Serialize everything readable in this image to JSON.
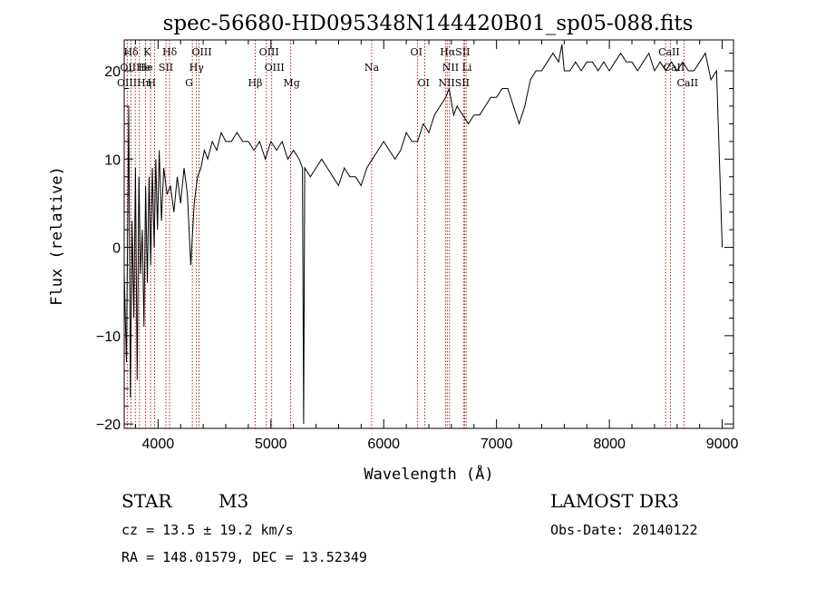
{
  "chart_data": {
    "type": "line",
    "title": "spec-56680-HD095348N144420B01_sp05-088.fits",
    "xlabel": "Wavelength (Å)",
    "ylabel": "Flux (relative)",
    "xlim": [
      3700,
      9100
    ],
    "ylim": [
      -20.5,
      23.5
    ],
    "xticks": [
      4000,
      5000,
      6000,
      7000,
      8000,
      9000
    ],
    "xtick_labels": [
      "4000",
      "5000",
      "6000",
      "7000",
      "8000",
      "9000"
    ],
    "yticks": [
      -20,
      -10,
      0,
      10,
      20
    ],
    "ytick_labels": [
      "−20",
      "−10",
      "0",
      "10",
      "20"
    ],
    "series": [
      {
        "name": "flux",
        "color": "#000000",
        "x": [
          3700,
          3720,
          3740,
          3755,
          3770,
          3785,
          3800,
          3815,
          3830,
          3845,
          3860,
          3875,
          3890,
          3905,
          3920,
          3935,
          3950,
          3965,
          3980,
          3995,
          4010,
          4030,
          4050,
          4080,
          4110,
          4140,
          4170,
          4200,
          4230,
          4260,
          4290,
          4320,
          4350,
          4380,
          4410,
          4440,
          4480,
          4520,
          4560,
          4600,
          4650,
          4700,
          4750,
          4800,
          4850,
          4900,
          4950,
          5000,
          5050,
          5100,
          5150,
          5200,
          5250,
          5280,
          5290,
          5300,
          5350,
          5400,
          5450,
          5500,
          5550,
          5600,
          5650,
          5700,
          5750,
          5800,
          5850,
          5900,
          5950,
          6000,
          6050,
          6100,
          6150,
          6200,
          6250,
          6300,
          6350,
          6400,
          6450,
          6500,
          6550,
          6580,
          6620,
          6650,
          6700,
          6750,
          6800,
          6850,
          6900,
          6950,
          7000,
          7050,
          7100,
          7150,
          7200,
          7250,
          7300,
          7350,
          7400,
          7450,
          7500,
          7550,
          7580,
          7600,
          7650,
          7700,
          7750,
          7800,
          7850,
          7900,
          7950,
          8000,
          8050,
          8100,
          8150,
          8200,
          8250,
          8300,
          8350,
          8400,
          8450,
          8500,
          8550,
          8600,
          8650,
          8700,
          8750,
          8800,
          8850,
          8900,
          8950,
          9000
        ],
        "y": [
          -3,
          -13,
          16,
          -17,
          3,
          -8,
          9,
          -15,
          8,
          -3,
          2,
          -9,
          7,
          -4,
          8,
          -2,
          9,
          0,
          10,
          2,
          11,
          3,
          9,
          6,
          7,
          4,
          8,
          5,
          9,
          6,
          -2,
          5,
          8,
          9,
          11,
          10,
          12,
          11,
          13,
          12,
          12,
          13,
          12,
          12,
          11,
          12,
          10,
          12,
          11,
          12,
          10,
          11,
          10,
          9,
          -20,
          9,
          8,
          9,
          10,
          9,
          8,
          7,
          9,
          8,
          8,
          7,
          9,
          10,
          11,
          12,
          11,
          10,
          11,
          13,
          12,
          12,
          14,
          13,
          15,
          16,
          17,
          18,
          15,
          16,
          15,
          14,
          15,
          15,
          16,
          17,
          17,
          18,
          18,
          16,
          14,
          16,
          19,
          20,
          20,
          21,
          22,
          21,
          23,
          20,
          20,
          21,
          20,
          21,
          21,
          20,
          21,
          20,
          21,
          22,
          21,
          21,
          20,
          21,
          22,
          20,
          21,
          20,
          21,
          20,
          21,
          20,
          20,
          21,
          22,
          19,
          20,
          0
        ]
      }
    ],
    "spectral_lines": [
      {
        "label": "Hδ",
        "x": 3760,
        "row": 1
      },
      {
        "label": "K",
        "x": 3934,
        "row": 1
      },
      {
        "label": "Hδ",
        "x": 4102,
        "row": 1
      },
      {
        "label": "OIII",
        "x": 4363,
        "row": 1
      },
      {
        "label": "OIII",
        "x": 4959,
        "row": 1
      },
      {
        "label": "OI",
        "x": 6300,
        "row": 1
      },
      {
        "label": "HαSII",
        "x": 6563,
        "row": 1
      },
      {
        "label": "CaII",
        "x": 8498,
        "row": 1
      },
      {
        "label": "OIIHe",
        "x": 3727,
        "row": 2
      },
      {
        "label": "He",
        "x": 3889,
        "row": 2
      },
      {
        "label": "SII",
        "x": 4069,
        "row": 2
      },
      {
        "label": "Hγ",
        "x": 4340,
        "row": 2
      },
      {
        "label": "OIII",
        "x": 5007,
        "row": 2
      },
      {
        "label": "Na",
        "x": 5893,
        "row": 2
      },
      {
        "label": "NII Li",
        "x": 6583,
        "row": 2
      },
      {
        "label": "CaII",
        "x": 8542,
        "row": 2
      },
      {
        "label": "OIIIHη",
        "x": 3700,
        "row": 3
      },
      {
        "label": "H",
        "x": 3969,
        "row": 3
      },
      {
        "label": "G",
        "x": 4304,
        "row": 3
      },
      {
        "label": "Hβ",
        "x": 4861,
        "row": 3
      },
      {
        "label": "Mg",
        "x": 5175,
        "row": 3
      },
      {
        "label": "OI",
        "x": 6364,
        "row": 3
      },
      {
        "label": "NIISII",
        "x": 6548,
        "row": 3
      },
      {
        "label": "CaII",
        "x": 8662,
        "row": 3
      }
    ],
    "line_markers": [
      3727,
      3760,
      3798,
      3835,
      3889,
      3934,
      3969,
      4069,
      4102,
      4304,
      4340,
      4363,
      4861,
      4959,
      5007,
      5175,
      5893,
      6300,
      6364,
      6548,
      6563,
      6583,
      6708,
      6717,
      6731,
      8498,
      8542,
      8662
    ],
    "line_color": "#b22222"
  },
  "info": {
    "class": "STAR",
    "subclass": "M3",
    "survey": "LAMOST DR3",
    "cz": "cz = 13.5 ± 19.2 km/s",
    "obs_date": "Obs-Date: 20140122",
    "coords": "RA = 148.01579, DEC =  13.52349"
  }
}
